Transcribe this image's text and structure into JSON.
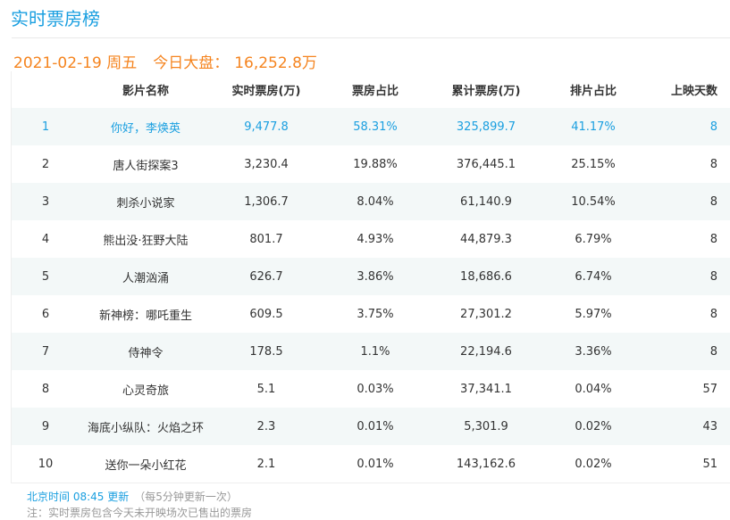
{
  "title": "实时票房榜",
  "summary": {
    "date": "2021-02-19 周五",
    "label": "今日大盘：",
    "total": "16,252.8万"
  },
  "columns": [
    "",
    "影片名称",
    "实时票房(万)",
    "票房占比",
    "累计票房(万)",
    "排片占比",
    "上映天数"
  ],
  "rows": [
    [
      "1",
      "你好，李焕英",
      "9,477.8",
      "58.31%",
      "325,899.7",
      "41.17%",
      "8"
    ],
    [
      "2",
      "唐人街探案3",
      "3,230.4",
      "19.88%",
      "376,445.1",
      "25.15%",
      "8"
    ],
    [
      "3",
      "刺杀小说家",
      "1,306.7",
      "8.04%",
      "61,140.9",
      "10.54%",
      "8"
    ],
    [
      "4",
      "熊出没·狂野大陆",
      "801.7",
      "4.93%",
      "44,879.3",
      "6.79%",
      "8"
    ],
    [
      "5",
      "人潮汹涌",
      "626.7",
      "3.86%",
      "18,686.6",
      "6.74%",
      "8"
    ],
    [
      "6",
      "新神榜：哪吒重生",
      "609.5",
      "3.75%",
      "27,301.2",
      "5.97%",
      "8"
    ],
    [
      "7",
      "侍神令",
      "178.5",
      "1.1%",
      "22,194.6",
      "3.36%",
      "8"
    ],
    [
      "8",
      "心灵奇旅",
      "5.1",
      "0.03%",
      "37,341.1",
      "0.04%",
      "57"
    ],
    [
      "9",
      "海底小纵队：火焰之环",
      "2.3",
      "0.01%",
      "5,301.9",
      "0.02%",
      "43"
    ],
    [
      "10",
      "送你一朵小红花",
      "2.1",
      "0.01%",
      "143,162.6",
      "0.02%",
      "51"
    ]
  ],
  "footer": {
    "update": "北京时间 08:45 更新",
    "interval": "（每5分钟更新一次）",
    "note": "注：实时票房包含今天未开映场次已售出的票房"
  },
  "colors": {
    "accent": "#1a9fe0",
    "summary": "#f5841f",
    "row_alt": "#f3f8f8"
  }
}
